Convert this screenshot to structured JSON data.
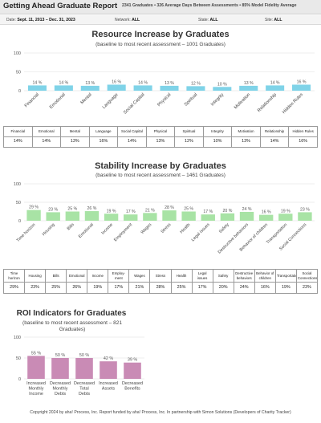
{
  "header": {
    "title": "Getting Ahead Graduate Report",
    "stats": "2341 Graduates  •  326 Average Days Between Assessments  •  85% Model Fidelity Average"
  },
  "filters": {
    "date_label": "Date:",
    "date_value": "Sept. 11, 2013 – Dec. 31, 2023",
    "network_label": "Network:",
    "network_value": "ALL",
    "state_label": "State:",
    "state_value": "ALL",
    "site_label": "Site:",
    "site_value": "ALL"
  },
  "resource": {
    "title": "Resource Increase by Graduates",
    "subtitle": "(baseline to most recent assessment – 1001 Graduates)",
    "table_headers": [
      "Financial",
      "Emotional",
      "Mental",
      "Language",
      "Social Capital",
      "Physical",
      "Spiritual",
      "Integrity",
      "Motivation",
      "Relationship",
      "Hidden Rules"
    ],
    "table_values": [
      "14%",
      "14%",
      "13%",
      "16%",
      "14%",
      "13%",
      "12%",
      "10%",
      "13%",
      "14%",
      "16%"
    ]
  },
  "stability": {
    "title": "Stability Increase by Graduates",
    "subtitle": "(baseline to most recent assessment – 1461 Graduates)",
    "table_headers": [
      "Time horizon",
      "Housing",
      "Bills",
      "Emotional",
      "Income",
      "Employ-ment",
      "Wages",
      "Stress",
      "Health",
      "Legal issues",
      "Safety",
      "Destructive behaviors",
      "Behavior of children",
      "Transportation",
      "Social Connections"
    ],
    "table_values": [
      "29%",
      "23%",
      "25%",
      "26%",
      "19%",
      "17%",
      "21%",
      "28%",
      "25%",
      "17%",
      "20%",
      "24%",
      "16%",
      "19%",
      "23%"
    ]
  },
  "roi": {
    "title": "ROI Indicators for Graduates",
    "subtitle": "(baseline to most recent assessment – 821 Graduates)"
  },
  "footer": {
    "text": "Copyright 2024 by aha! Process, Inc. Report funded by aha! Process, Inc. In partnership with Simon Solutions (Developers of Charity Tracker)"
  },
  "chart_data": [
    {
      "type": "bar",
      "title": "Resource Increase by Graduates",
      "categories": [
        "Financial",
        "Emotional",
        "Mental",
        "Language",
        "Social Capital",
        "Physical",
        "Spiritual",
        "Integrity",
        "Motivation",
        "Relationship",
        "Hidden Rules"
      ],
      "values": [
        14,
        14,
        13,
        16,
        14,
        13,
        12,
        10,
        13,
        14,
        16
      ],
      "data_labels": [
        "14 %",
        "14 %",
        "13 %",
        "16 %",
        "14 %",
        "13 %",
        "12 %",
        "10 %",
        "13 %",
        "14 %",
        "16 %"
      ],
      "y_ticks": [
        "0",
        "50",
        "100"
      ],
      "ylim": [
        0,
        100
      ],
      "bar_color": "#7fd3e8"
    },
    {
      "type": "bar",
      "title": "Stability Increase by Graduates",
      "categories": [
        "Time horizon",
        "Housing",
        "Bills",
        "Emotional",
        "Income",
        "Employment",
        "Wages",
        "Stress",
        "Health",
        "Legal issues",
        "Safety",
        "Destructive behaviors",
        "Behavior of children",
        "Transportation",
        "Social Connections"
      ],
      "values": [
        29,
        23,
        25,
        26,
        19,
        17,
        21,
        28,
        25,
        17,
        20,
        24,
        16,
        19,
        23
      ],
      "data_labels": [
        "29 %",
        "23 %",
        "25 %",
        "26 %",
        "19 %",
        "17 %",
        "21 %",
        "28 %",
        "25 %",
        "17 %",
        "20 %",
        "24 %",
        "16 %",
        "19 %",
        "23 %"
      ],
      "y_ticks": [
        "0",
        "50",
        "100"
      ],
      "ylim": [
        0,
        100
      ],
      "bar_color": "#a8e3a5"
    },
    {
      "type": "bar",
      "title": "ROI Indicators for Graduates",
      "categories": [
        "Increased Monthly Income",
        "Decreased Monthly Debts",
        "Decreased Total Debts",
        "Increased Assets",
        "Decreased Benefits"
      ],
      "values": [
        55,
        50,
        50,
        42,
        39
      ],
      "data_labels": [
        "55 %",
        "50 %",
        "50 %",
        "42 %",
        "39 %"
      ],
      "y_ticks": [
        "0",
        "50",
        "100"
      ],
      "ylim": [
        0,
        100
      ],
      "bar_color": "#c98bb5"
    }
  ]
}
